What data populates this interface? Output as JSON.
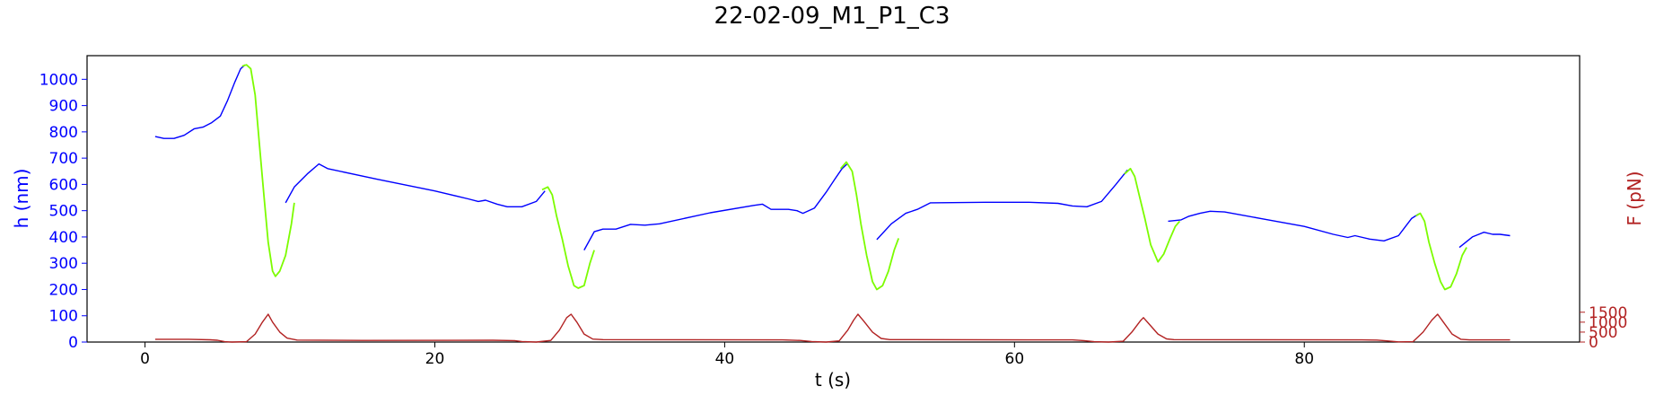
{
  "chart_data": {
    "type": "line",
    "title": "22-02-09_M1_P1_C3",
    "xlabel": "t (s)",
    "ylabel_left": "h (nm)",
    "ylabel_right": "F (pN)",
    "xlim": [
      -4,
      99
    ],
    "ylim_left": [
      0,
      1090
    ],
    "ylim_right": [
      0,
      14400
    ],
    "x_ticks": [
      0,
      20,
      40,
      60,
      80
    ],
    "y_ticks_left": [
      0,
      100,
      200,
      300,
      400,
      500,
      600,
      700,
      800,
      900,
      1000
    ],
    "y_ticks_right": [
      0,
      500,
      1000,
      1500
    ],
    "grid": false,
    "colors": {
      "height": "#0000ff",
      "height_pulling": "#7cfc00",
      "force": "#b22222",
      "left_axis": "#0000ff",
      "right_axis": "#b22222",
      "frame": "#000000"
    },
    "series": [
      {
        "role": "height",
        "axis": "left",
        "color": "#0000ff",
        "segments": [
          [
            [
              0.7,
              782
            ],
            [
              1.3,
              775
            ],
            [
              2,
              775
            ],
            [
              2.7,
              787
            ],
            [
              3.4,
              812
            ],
            [
              4,
              818
            ],
            [
              4.6,
              835
            ],
            [
              5.2,
              860
            ],
            [
              5.7,
              920
            ],
            [
              6.2,
              990
            ],
            [
              6.6,
              1040
            ],
            [
              6.9,
              1055
            ]
          ],
          [
            [
              9.7,
              530
            ],
            [
              10.3,
              590
            ],
            [
              11.2,
              640
            ],
            [
              12,
              678
            ],
            [
              12.6,
              660
            ],
            [
              16,
              620
            ],
            [
              20,
              575
            ],
            [
              22.3,
              545
            ],
            [
              23,
              535
            ],
            [
              23.5,
              540
            ],
            [
              24.3,
              525
            ],
            [
              25,
              515
            ],
            [
              26,
              515
            ],
            [
              27,
              535
            ],
            [
              27.6,
              575
            ]
          ],
          [
            [
              30.3,
              350
            ],
            [
              31,
              420
            ],
            [
              31.6,
              430
            ],
            [
              32.5,
              430
            ],
            [
              33.5,
              448
            ],
            [
              34.5,
              445
            ],
            [
              35.5,
              450
            ],
            [
              39,
              492
            ],
            [
              42,
              520
            ],
            [
              42.6,
              525
            ],
            [
              43.2,
              505
            ],
            [
              44.4,
              505
            ],
            [
              45,
              500
            ],
            [
              45.4,
              490
            ],
            [
              46.2,
              510
            ],
            [
              47,
              570
            ],
            [
              47.6,
              620
            ],
            [
              48.1,
              660
            ],
            [
              48.5,
              680
            ]
          ],
          [
            [
              50.5,
              390
            ],
            [
              51.5,
              450
            ],
            [
              52.5,
              490
            ],
            [
              53.3,
              505
            ],
            [
              54.2,
              530
            ],
            [
              58,
              532
            ],
            [
              61,
              532
            ],
            [
              63,
              528
            ],
            [
              64,
              518
            ],
            [
              65,
              515
            ],
            [
              66,
              535
            ],
            [
              67,
              600
            ],
            [
              67.8,
              655
            ]
          ],
          [
            [
              70.6,
              460
            ],
            [
              71.5,
              465
            ],
            [
              72,
              478
            ],
            [
              72.8,
              490
            ],
            [
              73.5,
              498
            ],
            [
              74.5,
              495
            ],
            [
              77,
              470
            ],
            [
              80,
              440
            ],
            [
              82,
              410
            ],
            [
              83,
              398
            ],
            [
              83.5,
              405
            ],
            [
              84.5,
              392
            ],
            [
              85.5,
              385
            ],
            [
              86.5,
              405
            ],
            [
              87.4,
              470
            ],
            [
              87.9,
              488
            ]
          ],
          [
            [
              90.7,
              360
            ],
            [
              91.6,
              400
            ],
            [
              92.4,
              418
            ],
            [
              93,
              410
            ],
            [
              93.5,
              410
            ],
            [
              94.2,
              405
            ]
          ]
        ]
      },
      {
        "role": "height_pulling",
        "axis": "left",
        "color": "#7cfc00",
        "segments": [
          [
            [
              6.7,
              1050
            ],
            [
              7,
              1055
            ],
            [
              7.3,
              1040
            ],
            [
              7.6,
              940
            ],
            [
              7.9,
              750
            ],
            [
              8.2,
              560
            ],
            [
              8.5,
              380
            ],
            [
              8.8,
              270
            ],
            [
              9,
              250
            ],
            [
              9.3,
              270
            ],
            [
              9.7,
              330
            ],
            [
              10.1,
              450
            ],
            [
              10.3,
              530
            ]
          ],
          [
            [
              27.4,
              580
            ],
            [
              27.8,
              590
            ],
            [
              28.1,
              560
            ],
            [
              28.4,
              480
            ],
            [
              28.8,
              390
            ],
            [
              29.2,
              290
            ],
            [
              29.6,
              215
            ],
            [
              29.9,
              205
            ],
            [
              30.3,
              215
            ],
            [
              30.7,
              300
            ],
            [
              31,
              350
            ]
          ],
          [
            [
              48,
              660
            ],
            [
              48.4,
              685
            ],
            [
              48.8,
              650
            ],
            [
              49.1,
              560
            ],
            [
              49.4,
              450
            ],
            [
              49.8,
              330
            ],
            [
              50.2,
              230
            ],
            [
              50.5,
              200
            ],
            [
              50.9,
              215
            ],
            [
              51.3,
              270
            ],
            [
              51.7,
              350
            ],
            [
              52,
              395
            ]
          ],
          [
            [
              67.6,
              640
            ],
            [
              68,
              660
            ],
            [
              68.3,
              630
            ],
            [
              68.6,
              560
            ],
            [
              69,
              470
            ],
            [
              69.4,
              370
            ],
            [
              69.9,
              305
            ],
            [
              70.3,
              335
            ],
            [
              70.7,
              390
            ],
            [
              71.1,
              440
            ],
            [
              71.4,
              460
            ]
          ],
          [
            [
              87.7,
              480
            ],
            [
              88,
              490
            ],
            [
              88.3,
              460
            ],
            [
              88.6,
              380
            ],
            [
              89,
              300
            ],
            [
              89.4,
              230
            ],
            [
              89.7,
              200
            ],
            [
              90.1,
              210
            ],
            [
              90.5,
              260
            ],
            [
              90.9,
              330
            ],
            [
              91.2,
              360
            ]
          ]
        ]
      },
      {
        "role": "force",
        "axis": "right",
        "color": "#b22222",
        "segments": [
          [
            [
              0.7,
              140
            ],
            [
              3,
              140
            ],
            [
              4.5,
              115
            ],
            [
              5,
              90
            ],
            [
              5.5,
              20
            ],
            [
              6,
              0
            ],
            [
              7,
              20
            ],
            [
              7.6,
              400
            ],
            [
              8.1,
              1000
            ],
            [
              8.5,
              1400
            ],
            [
              8.8,
              1000
            ],
            [
              9.3,
              500
            ],
            [
              9.8,
              200
            ],
            [
              10.5,
              100
            ],
            [
              15,
              80
            ],
            [
              24,
              90
            ],
            [
              25.5,
              70
            ],
            [
              26,
              25
            ],
            [
              27,
              0
            ],
            [
              28,
              80
            ],
            [
              28.6,
              600
            ],
            [
              29.1,
              1230
            ],
            [
              29.4,
              1400
            ],
            [
              29.8,
              1000
            ],
            [
              30.3,
              400
            ],
            [
              30.9,
              150
            ],
            [
              31.6,
              120
            ],
            [
              44,
              110
            ],
            [
              45.2,
              80
            ],
            [
              46,
              25
            ],
            [
              47,
              0
            ],
            [
              47.9,
              60
            ],
            [
              48.5,
              600
            ],
            [
              48.9,
              1100
            ],
            [
              49.2,
              1400
            ],
            [
              49.6,
              1050
            ],
            [
              50.2,
              500
            ],
            [
              50.8,
              180
            ],
            [
              51.4,
              120
            ],
            [
              64,
              110
            ],
            [
              64.8,
              70
            ],
            [
              65.5,
              20
            ],
            [
              66.5,
              0
            ],
            [
              67.5,
              40
            ],
            [
              68.1,
              500
            ],
            [
              68.7,
              1080
            ],
            [
              68.9,
              1230
            ],
            [
              69.3,
              900
            ],
            [
              69.9,
              400
            ],
            [
              70.5,
              160
            ],
            [
              71,
              120
            ],
            [
              84,
              110
            ],
            [
              85,
              100
            ],
            [
              85.7,
              60
            ],
            [
              86.5,
              10
            ],
            [
              87.5,
              20
            ],
            [
              88.2,
              500
            ],
            [
              88.8,
              1100
            ],
            [
              89.2,
              1400
            ],
            [
              89.6,
              1000
            ],
            [
              90.2,
              400
            ],
            [
              90.8,
              140
            ],
            [
              91.4,
              110
            ],
            [
              94.2,
              110
            ]
          ]
        ]
      }
    ]
  }
}
